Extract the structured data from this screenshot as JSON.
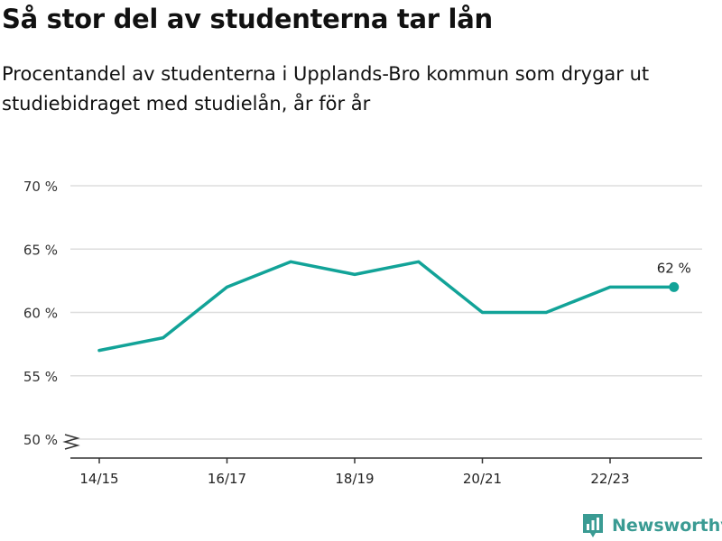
{
  "header": {
    "title": "Så stor del av studenterna tar lån",
    "subtitle": "Procentandel av studenterna i Upplands-Bro kommun som drygar ut studiebidraget med studielån, år för år"
  },
  "brand": {
    "name": "Newsworthy",
    "color": "#3a9b93"
  },
  "chart_data": {
    "type": "line",
    "title": "Så stor del av studenterna tar lån",
    "subtitle": "Procentandel av studenterna i Upplands-Bro kommun som drygar ut studiebidraget med studielån, år för år",
    "categories": [
      "14/15",
      "15/16",
      "16/17",
      "17/18",
      "18/19",
      "19/20",
      "20/21",
      "21/22",
      "22/23",
      "23/24"
    ],
    "x_tick_labels": [
      "14/15",
      "16/17",
      "18/19",
      "20/21",
      "22/23"
    ],
    "series": [
      {
        "values": [
          57,
          58,
          62,
          64,
          63,
          64,
          60,
          60,
          62,
          62
        ],
        "color": "#12a398"
      }
    ],
    "end_label": "62 %",
    "y_ticks": [
      50,
      55,
      60,
      65,
      70
    ],
    "y_tick_labels": [
      "50 %",
      "55 %",
      "60 %",
      "65 %",
      "70 %"
    ],
    "ylim": [
      50,
      70
    ],
    "y_axis_break": true,
    "grid": true,
    "xlabel": "",
    "ylabel": ""
  }
}
